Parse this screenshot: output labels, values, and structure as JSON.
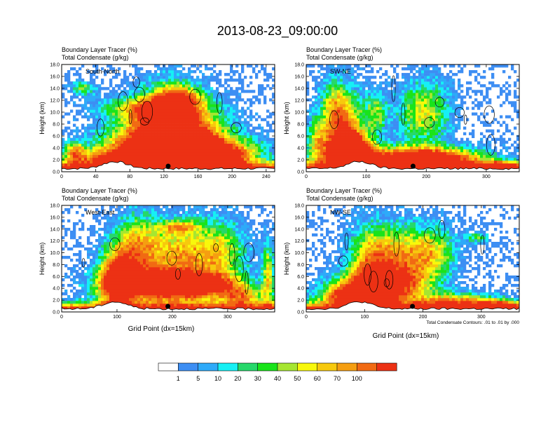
{
  "title": "2013-08-23_09:00:00",
  "chart_data": [
    {
      "type": "heatmap",
      "panel_label": "South-North",
      "left_title_1": "Boundary Layer Tracer   (%)",
      "left_title_2": "Total Condensate   (g/kg)",
      "ylabel": "Height (km)",
      "xlabel": "",
      "xlim": [
        0,
        250
      ],
      "xticks": [
        0,
        40,
        80,
        120,
        160,
        200,
        240
      ],
      "ylim": [
        0,
        18
      ],
      "yticks": [
        "0.0",
        "2.0",
        "4.0",
        "6.0",
        "8.0",
        "10.0",
        "12.0",
        "14.0",
        "16.0",
        "18.0"
      ],
      "marker_x": 125
    },
    {
      "type": "heatmap",
      "panel_label": "SW-NE",
      "left_title_1": "Boundary Layer Tracer   (%)",
      "left_title_2": "Total Condensate   (g/kg)",
      "ylabel": "Height (km)",
      "xlabel": "",
      "xlim": [
        0,
        355
      ],
      "xticks": [
        0,
        100,
        200,
        300
      ],
      "ylim": [
        0,
        18
      ],
      "yticks": [
        "0.0",
        "2.0",
        "4.0",
        "6.0",
        "8.0",
        "10.0",
        "12.0",
        "14.0",
        "16.0",
        "18.0"
      ],
      "marker_x": 178
    },
    {
      "type": "heatmap",
      "panel_label": "West-East",
      "left_title_1": "Boundary Layer Tracer   (%)",
      "left_title_2": "Total Condensate   (g/kg)",
      "ylabel": "Height (km)",
      "xlabel": "Grid Point (dx=15km)",
      "xlim": [
        0,
        385
      ],
      "xticks": [
        0,
        100,
        200,
        300
      ],
      "ylim": [
        0,
        18
      ],
      "yticks": [
        "0.0",
        "2.0",
        "4.0",
        "6.0",
        "8.0",
        "10.0",
        "12.0",
        "14.0",
        "16.0",
        "18.0"
      ],
      "marker_x": 192
    },
    {
      "type": "heatmap",
      "panel_label": "NW-SE",
      "left_title_1": "Boundary Layer Tracer   (%)",
      "left_title_2": "Total Condensate   (g/kg)",
      "ylabel": "Height (km)",
      "xlabel": "Grid Point (dx=15km)",
      "contour_note": "Total Condensate Contours: .01 to .01 by .000",
      "xlim": [
        0,
        365
      ],
      "xticks": [
        0,
        100,
        200,
        300
      ],
      "ylim": [
        0,
        18
      ],
      "yticks": [
        "0.0",
        "2.0",
        "4.0",
        "6.0",
        "8.0",
        "10.0",
        "12.0",
        "14.0",
        "16.0",
        "18.0"
      ],
      "marker_x": 182
    }
  ],
  "colorbar": {
    "labels": [
      "1",
      "5",
      "10",
      "20",
      "30",
      "40",
      "50",
      "60",
      "70",
      "100"
    ],
    "colors": [
      "#ffffff",
      "#3d8ef3",
      "#2eaaf9",
      "#16f0f4",
      "#26d86a",
      "#19e41a",
      "#a6e631",
      "#f8f80b",
      "#f7c90d",
      "#f59e11",
      "#f16a13",
      "#ec3114"
    ]
  },
  "colors": {
    "bin_colors": [
      "#ffffff",
      "#3d8ef3",
      "#2eaaf9",
      "#16f0f4",
      "#26d86a",
      "#19e41a",
      "#a6e631",
      "#f8f80b",
      "#f7c90d",
      "#f59e11",
      "#f16a13",
      "#ec3114"
    ]
  }
}
